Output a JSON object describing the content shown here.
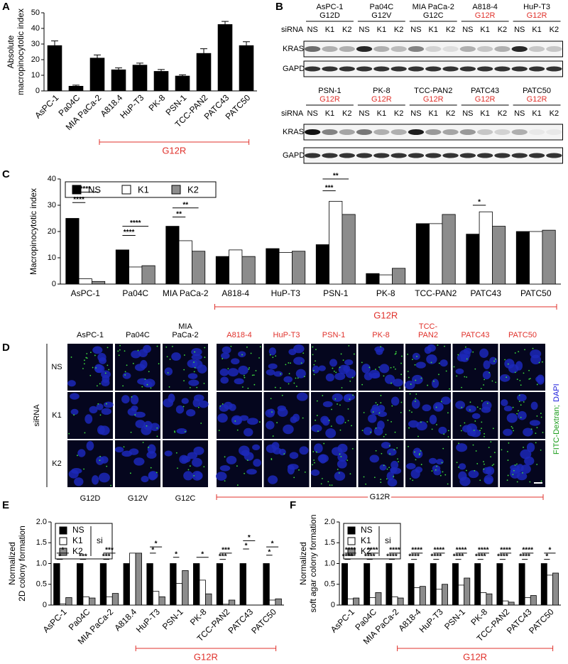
{
  "chart_data": [
    {
      "type": "bar",
      "panel": "A",
      "ylabel": [
        "Absolute",
        "macropinocytotic index"
      ],
      "categories": [
        "AsPC-1",
        "Pa04C",
        "MIA PaCa-2",
        "A818.4",
        "HuP-T3",
        "PK-8",
        "PSN-1",
        "TCC-PAN2",
        "PATC43",
        "PATC50"
      ],
      "values": [
        29,
        3,
        21,
        13.5,
        16.5,
        12.5,
        9.5,
        24,
        42.5,
        29
      ],
      "errors": [
        3,
        0.7,
        2,
        1.2,
        1.3,
        1.2,
        0.8,
        3,
        2,
        2.5
      ],
      "color": "#000000",
      "ylim": [
        0,
        50
      ],
      "yticks": [
        0,
        10,
        20,
        30,
        40,
        50
      ],
      "group_label": "G12R"
    },
    {
      "type": "bar",
      "panel": "C",
      "ylabel": [
        "Macropinocytotic index"
      ],
      "categories": [
        "AsPC-1",
        "Pa04C",
        "MIA PaCa-2",
        "A818-4",
        "HuP-T3",
        "PSN-1",
        "PK-8",
        "TCC-PAN2",
        "PATC43",
        "PATC50"
      ],
      "series": [
        {
          "name": "NS",
          "color": "#000000",
          "values": [
            25,
            13,
            22,
            10.5,
            13.5,
            15,
            4,
            23,
            19,
            20
          ]
        },
        {
          "name": "K1",
          "color": "#ffffff",
          "values": [
            2,
            6.5,
            16.5,
            13,
            12,
            31.5,
            3.5,
            23,
            27.5,
            20
          ]
        },
        {
          "name": "K2",
          "color": "#8c8c8c",
          "values": [
            1,
            7,
            12.5,
            10.5,
            12.5,
            26.5,
            6,
            26.5,
            22,
            20.5
          ]
        }
      ],
      "ylim": [
        0,
        40
      ],
      "yticks": [
        0,
        10,
        20,
        30,
        40
      ],
      "annotations": [
        "****",
        "****",
        "****",
        "****",
        "**",
        "**",
        "**",
        "***",
        "*"
      ],
      "group_label": "G12R"
    },
    {
      "type": "bar",
      "panel": "E",
      "ylabel": [
        "Normalized",
        "2D colony formation"
      ],
      "categories": [
        "AsPC-1",
        "Pa04C",
        "MIA PaCa-2",
        "A818.4",
        "HuP-T3",
        "PSN-1",
        "PK-8",
        "TCC-PAN2",
        "PATC43",
        "PATC50"
      ],
      "series": [
        {
          "name": "NS",
          "color": "#000000",
          "values": [
            1,
            1,
            1,
            1,
            1,
            1,
            1,
            1,
            1,
            1
          ]
        },
        {
          "name": "K1",
          "color": "#ffffff",
          "values": [
            0.03,
            0.2,
            0.2,
            1.25,
            0.33,
            0.52,
            0.6,
            0.02,
            0,
            0.12
          ]
        },
        {
          "name": "K2",
          "color": "#8c8c8c",
          "values": [
            0.18,
            0.17,
            0.28,
            1.25,
            0.2,
            0.83,
            0.27,
            0.12,
            0,
            0.15
          ]
        }
      ],
      "legend_title": "si",
      "ylim": [
        0,
        2
      ],
      "yticks": [
        0,
        0.5,
        {
          "value": 1,
          "label": "1.0"
        },
        1.5,
        {
          "value": 2,
          "label": "2.0"
        }
      ],
      "annotations": [
        "*",
        "*",
        "***",
        "***",
        "***",
        "*",
        "*",
        "*",
        "*",
        "***",
        "***",
        "*",
        "*",
        "*",
        "*"
      ],
      "group_label": "G12R"
    },
    {
      "type": "bar",
      "panel": "F",
      "ylabel": [
        "Normalized",
        "soft agar colony formation"
      ],
      "categories": [
        "AsPC-1",
        "Pa04C",
        "MIA PaCa-2",
        "A818-4",
        "HuP-T3",
        "PSN-1",
        "PK-8",
        "TCC-PAN2",
        "PATC43",
        "PATC50"
      ],
      "series": [
        {
          "name": "NS",
          "color": "#000000",
          "values": [
            1,
            1,
            1,
            1,
            1,
            1,
            1,
            1,
            1,
            1
          ]
        },
        {
          "name": "K1",
          "color": "#ffffff",
          "values": [
            0.15,
            0.18,
            0.2,
            0.42,
            0.38,
            0.48,
            0.3,
            0.1,
            0.18,
            0.72
          ]
        },
        {
          "name": "K2",
          "color": "#8c8c8c",
          "values": [
            0.17,
            0.3,
            0.17,
            0.45,
            0.5,
            0.65,
            0.27,
            0.07,
            0.23,
            0.77
          ]
        }
      ],
      "legend_title": "si",
      "ylim": [
        0,
        2
      ],
      "yticks": [
        0,
        0.5,
        {
          "value": 1,
          "label": "1.0"
        },
        1.5,
        {
          "value": 2,
          "label": "2.0"
        }
      ],
      "annotations": [
        "****",
        "****",
        "****",
        "****",
        "****",
        "****",
        "****",
        "****",
        "****",
        "****",
        "****",
        "****",
        "****",
        "****",
        "****",
        "****",
        "****",
        "****",
        "*",
        "*"
      ],
      "group_label": "G12R"
    }
  ],
  "blots": {
    "panel": "B",
    "siRNA_label": "siRNA",
    "lanes": [
      "NS",
      "K1",
      "K2"
    ],
    "rows": [
      "KRAS",
      "GAPDH"
    ],
    "sets": [
      [
        {
          "name": "AsPC-1",
          "mutation": "G12D",
          "color": "#000000"
        },
        {
          "name": "Pa04C",
          "mutation": "G12V",
          "color": "#000000"
        },
        {
          "name": "MIA PaCa-2",
          "mutation": "G12C",
          "color": "#000000"
        },
        {
          "name": "A818-4",
          "mutation": "G12R",
          "color": "#e0312b"
        },
        {
          "name": "HuP-T3",
          "mutation": "G12R",
          "color": "#e0312b"
        }
      ],
      [
        {
          "name": "PSN-1",
          "mutation": "G12R",
          "color": "#e0312b"
        },
        {
          "name": "PK-8",
          "mutation": "G12R",
          "color": "#e0312b"
        },
        {
          "name": "TCC-PAN2",
          "mutation": "G12R",
          "color": "#e0312b"
        },
        {
          "name": "PATC43",
          "mutation": "G12R",
          "color": "#e0312b"
        },
        {
          "name": "PATC50",
          "mutation": "G12R",
          "color": "#e0312b"
        }
      ]
    ]
  },
  "microscopy": {
    "panel": "D",
    "row_title": "siRNA",
    "rows": [
      "NS",
      "K1",
      "K2"
    ],
    "columns": [
      {
        "name": [
          "AsPC-1"
        ],
        "color": "#000000"
      },
      {
        "name": [
          "Pa04C"
        ],
        "color": "#000000"
      },
      {
        "name": [
          "MIA",
          "PaCa-2"
        ],
        "color": "#000000"
      },
      {
        "name": [
          "A818-4"
        ],
        "color": "#e0312b"
      },
      {
        "name": [
          "HuP-T3"
        ],
        "color": "#e0312b"
      },
      {
        "name": [
          "PSN-1"
        ],
        "color": "#e0312b"
      },
      {
        "name": [
          "PK-8"
        ],
        "color": "#e0312b"
      },
      {
        "name": [
          "TCC-",
          "PAN2"
        ],
        "color": "#e0312b"
      },
      {
        "name": [
          "PATC43"
        ],
        "color": "#e0312b"
      },
      {
        "name": [
          "PATC50"
        ],
        "color": "#e0312b"
      }
    ],
    "stain": [
      {
        "text": "FITC-Dextran;",
        "color": "#1a9c1a"
      },
      {
        "text": "DAPI",
        "color": "#1a1adc"
      }
    ],
    "mutations": [
      "G12D",
      "G12V",
      "G12C"
    ],
    "group_label": "G12R"
  }
}
